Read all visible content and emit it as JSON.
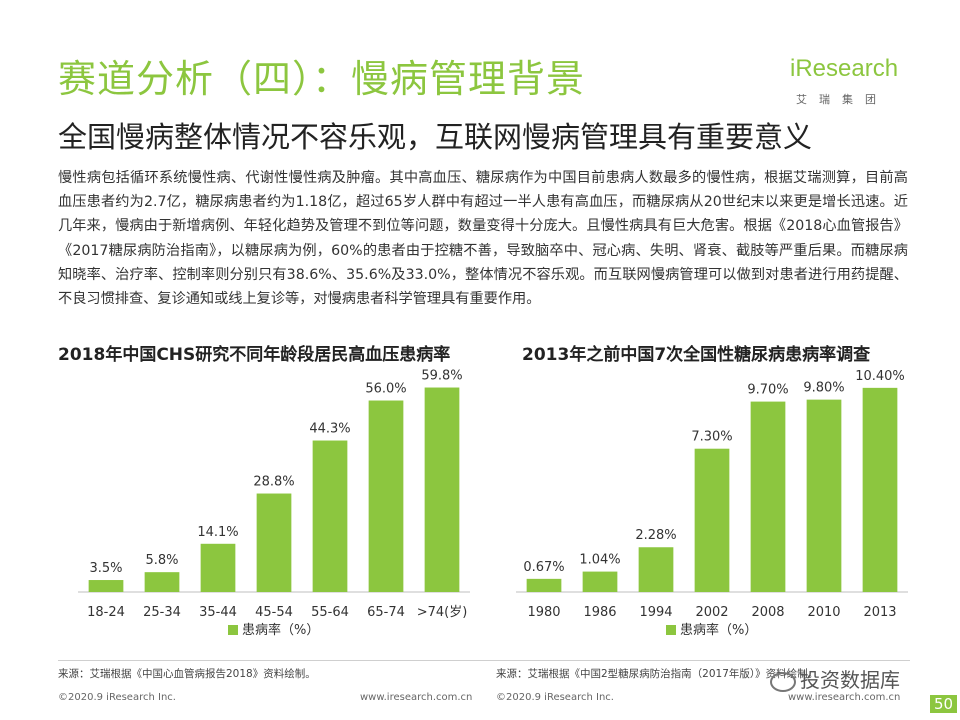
{
  "header": {
    "title": "赛道分析（四）：慢病管理背景",
    "subtitle": "全国慢病整体情况不容乐观，互联网慢病管理具有重要意义",
    "logo_main": "iResearch",
    "logo_sub": "艾瑞集团"
  },
  "body": {
    "paragraph": "慢性病包括循环系统慢性病、代谢性慢性病及肿瘤。其中高血压、糖尿病作为中国目前患病人数最多的慢性病，根据艾瑞测算，目前高血压患者约为2.7亿，糖尿病患者约为1.18亿，超过65岁人群中有超过一半人患有高血压，而糖尿病从20世纪末以来更是增长迅速。近几年来，慢病由于新增病例、年轻化趋势及管理不到位等问题，数量变得十分庞大。且慢性病具有巨大危害。根据《2018心血管报告》《2017糖尿病防治指南》，以糖尿病为例，60%的患者由于控糖不善，导致脑卒中、冠心病、失明、肾衰、截肢等严重后果。而糖尿病知晓率、治疗率、控制率则分别只有38.6%、35.6%及33.0%，整体情况不容乐观。而互联网慢病管理可以做到对患者进行用药提醒、不良习惯排查、复诊通知或线上复诊等，对慢病患者科学管理具有重要作用。"
  },
  "chart_data": [
    {
      "type": "bar",
      "title": "2018年中国CHS研究不同年龄段居民高血压患病率",
      "categories": [
        "18-24",
        "25-34",
        "35-44",
        "45-54",
        "55-64",
        "65-74",
        ">74(岁)"
      ],
      "values": [
        3.5,
        5.8,
        14.1,
        28.8,
        44.3,
        56.0,
        59.8
      ],
      "labels": [
        "3.5%",
        "5.8%",
        "14.1%",
        "28.8%",
        "44.3%",
        "56.0%",
        "59.8%"
      ],
      "legend": "患病率（%）",
      "ylim": [
        0,
        62
      ],
      "color": "#8cc63f",
      "source": "来源：艾瑞根据《中国心血管病报告2018》资料绘制。"
    },
    {
      "type": "bar",
      "title": "2013年之前中国7次全国性糖尿病患病率调查",
      "categories": [
        "1980",
        "1986",
        "1994",
        "2002",
        "2008",
        "2010",
        "2013"
      ],
      "values": [
        0.67,
        1.04,
        2.28,
        7.3,
        9.7,
        9.8,
        10.4
      ],
      "labels": [
        "0.67%",
        "1.04%",
        "2.28%",
        "7.30%",
        "9.70%",
        "9.80%",
        "10.40%"
      ],
      "legend": "患病率（%）",
      "ylim": [
        0,
        10.8
      ],
      "color": "#8cc63f",
      "source": "来源：艾瑞根据《中国2型糖尿病防治指南（2017年版）》资料绘制。"
    }
  ],
  "footer": {
    "copyright": "©2020.9 iResearch Inc.",
    "site": "www.iresearch.com.cn",
    "watermark": "投资数据库",
    "page": "50"
  }
}
